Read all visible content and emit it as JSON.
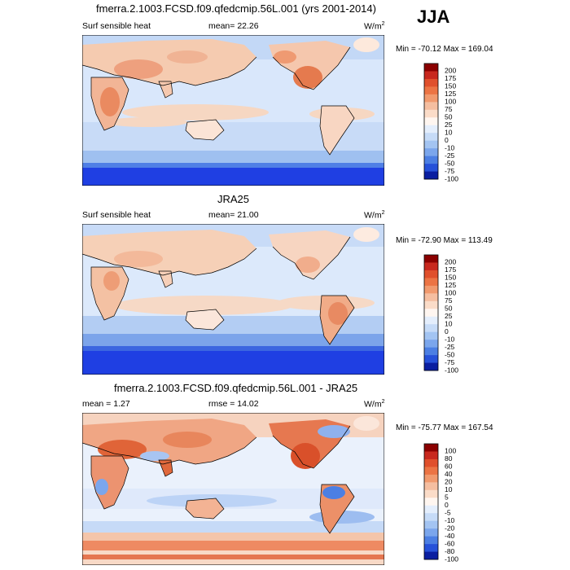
{
  "season": "JJA",
  "panels": [
    {
      "title": "fmerra.2.1003.FCSD.f09.qfedcmip.56L.001 (yrs 2001-2014)",
      "left_label": "Surf sensible heat",
      "center_label": "mean=  22.26",
      "units": "W/m",
      "units_sup": "2",
      "minmax": "Min = -70.12 Max = 169.04",
      "colorbar_labels": [
        "200",
        "175",
        "150",
        "125",
        "100",
        "75",
        "50",
        "25",
        "10",
        "0",
        "-10",
        "-25",
        "-50",
        "-75",
        "-100"
      ]
    },
    {
      "title": "JRA25",
      "left_label": "Surf sensible heat",
      "center_label": "mean=  21.00",
      "units": "W/m",
      "units_sup": "2",
      "minmax": "Min = -72.90 Max = 113.49",
      "colorbar_labels": [
        "200",
        "175",
        "150",
        "125",
        "100",
        "75",
        "50",
        "25",
        "10",
        "0",
        "-10",
        "-25",
        "-50",
        "-75",
        "-100"
      ]
    },
    {
      "title": "fmerra.2.1003.FCSD.f09.qfedcmip.56L.001 - JRA25",
      "left_label": "mean =   1.27",
      "center_label": "rmse =  14.02",
      "units": "W/m",
      "units_sup": "2",
      "minmax": "Min = -75.77 Max = 167.54",
      "colorbar_labels": [
        "100",
        "80",
        "60",
        "40",
        "20",
        "10",
        "5",
        "0",
        "-5",
        "-10",
        "-20",
        "-40",
        "-60",
        "-80",
        "-100"
      ]
    }
  ],
  "colors": {
    "ocean_light": "#d6e6fb",
    "land_warm": "#f7d4bd",
    "antarctic": "#1e3ee6",
    "coast": "#000000"
  },
  "colorbar_colors": [
    "#8b0000",
    "#c8281e",
    "#e0502c",
    "#ec7444",
    "#f19a6e",
    "#f5bea0",
    "#fbdcc8",
    "#fff6f0",
    "#e4eefc",
    "#c6dbf7",
    "#a3c4f2",
    "#7ba6ec",
    "#4c7fe3",
    "#2651d9",
    "#0a1ea0"
  ]
}
